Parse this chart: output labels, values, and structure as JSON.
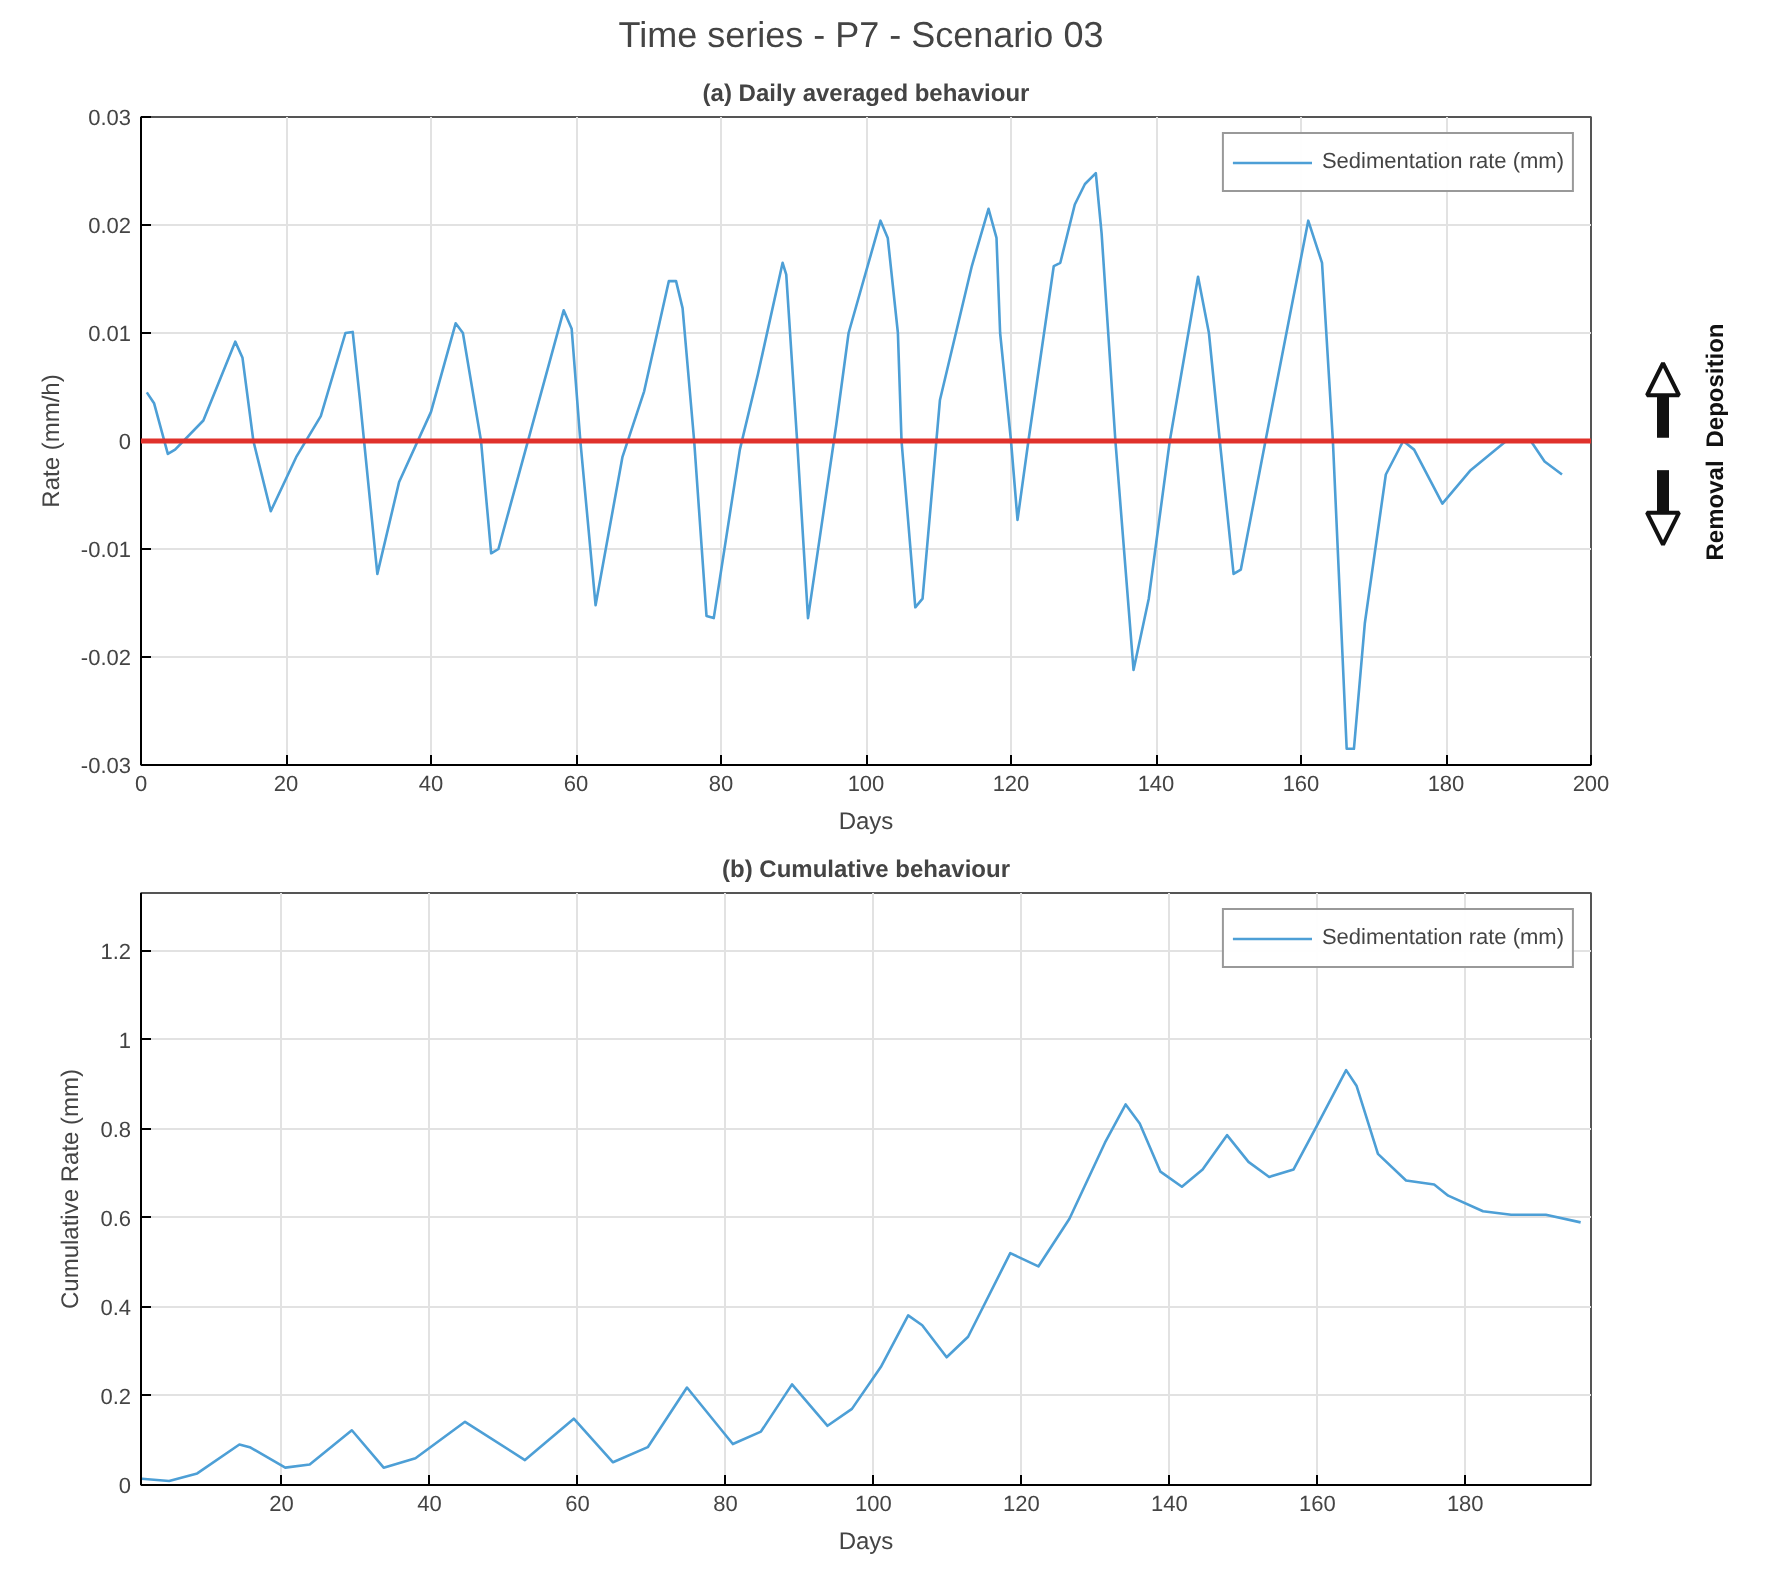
{
  "chart_data": [
    {
      "type": "line",
      "title": "Time series - P7 -  Scenario 03",
      "subtitle": "(a) Daily averaged behaviour",
      "xlabel": "Days",
      "ylabel": "Rate (mm/h)",
      "annotations": [
        "Deposition",
        "Removal"
      ],
      "x": [
        0.8,
        1.8,
        3.7,
        4.7,
        8.6,
        13,
        14,
        15.5,
        17.9,
        21.4,
        24.8,
        28.2,
        29.2,
        30.2,
        32.6,
        35.6,
        40,
        43.4,
        44.4,
        46.9,
        48.3,
        49.3,
        53.7,
        58.3,
        59.4,
        60.6,
        62.7,
        66.4,
        69.4,
        72.8,
        73.8,
        74.7,
        76.3,
        78,
        79,
        82.6,
        85.1,
        88.5,
        89,
        90.5,
        92,
        95.9,
        97.6,
        102,
        103,
        104.4,
        104.9,
        106.8,
        107.8,
        110.2,
        114.6,
        116.9,
        118,
        118.5,
        120,
        120.9,
        122.4,
        125.9,
        126.8,
        128.8,
        130.2,
        131.7,
        132.5,
        134.4,
        136.9,
        139,
        141.9,
        145.8,
        147.3,
        148.8,
        150.7,
        151.7,
        155.1,
        161,
        162.9,
        164.4,
        166.3,
        167.3,
        168.8,
        171.7,
        174.1,
        175.6,
        179.5,
        183.4,
        188.3,
        191.7,
        193.6,
        196
      ],
      "series": [
        {
          "name": "Sedimentation rate (mm)",
          "color": "#4d9fd6",
          "values": [
            0.0045,
            0.0035,
            -0.0012,
            -0.0008,
            0.0019,
            0.0092,
            0.0077,
            0,
            -0.0065,
            -0.0015,
            0.0023,
            0.01,
            0.0101,
            0.0038,
            -0.0123,
            -0.0038,
            0.0027,
            0.0109,
            0.01,
            0,
            -0.0104,
            -0.01,
            0.0008,
            0.0121,
            0.0104,
            0,
            -0.0152,
            -0.0015,
            0.0046,
            0.0148,
            0.0148,
            0.0123,
            0,
            -0.0162,
            -0.0164,
            -0.0008,
            0.0062,
            0.0165,
            0.0154,
            0,
            -0.0164,
            0.0015,
            0.01,
            0.0204,
            0.0188,
            0.01,
            0,
            -0.0154,
            -0.0146,
            0.0038,
            0.0162,
            0.0215,
            0.0188,
            0.01,
            0,
            -0.0073,
            0,
            0.0162,
            0.0165,
            0.0219,
            0.0238,
            0.0248,
            0.0192,
            0,
            -0.0212,
            -0.0146,
            0,
            0.0152,
            0.01,
            0,
            -0.0123,
            -0.0119,
            0,
            0.0204,
            0.0165,
            0,
            -0.0285,
            -0.0285,
            -0.0169,
            -0.0031,
            0,
            -0.0008,
            -0.0058,
            -0.0027,
            0,
            0,
            -0.0019,
            -0.0031
          ]
        }
      ],
      "ref_lines": [
        {
          "axis": "y",
          "value": 0,
          "color": "#e0312b"
        }
      ],
      "xlim": [
        0,
        200
      ],
      "xticks": [
        0,
        20,
        40,
        60,
        80,
        100,
        120,
        140,
        160,
        180,
        200
      ],
      "ylim": [
        -0.03,
        0.03
      ],
      "yticks": [
        -0.03,
        -0.02,
        -0.01,
        0,
        0.01,
        0.02,
        0.03
      ],
      "grid": true,
      "legend": "top right"
    },
    {
      "type": "line",
      "title": "(b) Cumulative behaviour",
      "xlabel": "Days",
      "ylabel": "Cumulative Rate (mm)",
      "x": [
        1.1,
        4.8,
        8.6,
        14.3,
        15.7,
        20.5,
        23.8,
        29.5,
        33.8,
        38.1,
        44.8,
        52.9,
        59.5,
        64.8,
        69.5,
        74.8,
        81,
        84.8,
        89,
        93.8,
        97.1,
        101,
        104.7,
        106.6,
        109.9,
        112.8,
        118.5,
        122.3,
        126.5,
        131.3,
        134.1,
        136,
        138.8,
        141.7,
        144.5,
        147.8,
        150.7,
        153.5,
        156.8,
        160.1,
        163.9,
        165.3,
        168.2,
        172,
        175.8,
        177.7,
        182.4,
        186.2,
        190.9,
        195.6
      ],
      "series": [
        {
          "name": "Sedimentation rate (mm)",
          "color": "#4d9fd6",
          "values": [
            0.014,
            0.009,
            0.026,
            0.091,
            0.085,
            0.039,
            0.046,
            0.123,
            0.039,
            0.06,
            0.142,
            0.056,
            0.149,
            0.051,
            0.085,
            0.219,
            0.092,
            0.12,
            0.226,
            0.133,
            0.171,
            0.265,
            0.381,
            0.359,
            0.287,
            0.333,
            0.521,
            0.491,
            0.598,
            0.769,
            0.855,
            0.812,
            0.704,
            0.67,
            0.709,
            0.786,
            0.726,
            0.692,
            0.709,
            0.812,
            0.932,
            0.897,
            0.744,
            0.684,
            0.675,
            0.65,
            0.615,
            0.607,
            0.607,
            0.59
          ]
        }
      ],
      "xlim": [
        1,
        197
      ],
      "xticks": [
        20,
        40,
        60,
        80,
        100,
        120,
        140,
        160,
        180
      ],
      "ylim": [
        0,
        1.33
      ],
      "yticks": [
        0,
        0.2,
        0.4,
        0.6,
        0.8,
        1,
        1.2
      ],
      "grid": true,
      "legend": "top right"
    }
  ]
}
